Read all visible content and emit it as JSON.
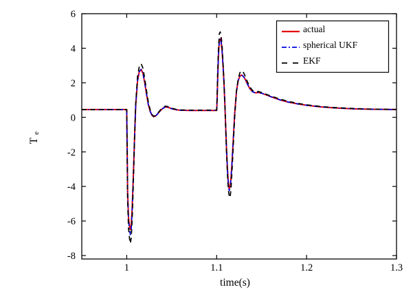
{
  "figure": {
    "xlabel": "time(s)",
    "ylabel_main": "T",
    "ylabel_sub": "e"
  },
  "chart_data": {
    "type": "line",
    "title": "",
    "xlabel": "time(s)",
    "ylabel": "T_e",
    "xlim": [
      0.95,
      1.3
    ],
    "ylim": [
      -8.2,
      6
    ],
    "x_ticks": [
      1,
      1.1,
      1.2,
      1.3
    ],
    "x_tick_labels": [
      "1",
      "1.1",
      "1.2",
      "1.3"
    ],
    "y_ticks": [
      -8,
      -6,
      -4,
      -2,
      0,
      2,
      4,
      6
    ],
    "y_tick_labels": [
      "-8",
      "-6",
      "-4",
      "-2",
      "0",
      "2",
      "4",
      "6"
    ],
    "grid": false,
    "legend_position": "top-right",
    "axis_color": "#000000",
    "background": "#ffffff",
    "x": [
      0.95,
      0.98,
      1.0,
      1.0005,
      1.001,
      1.002,
      1.003,
      1.004,
      1.005,
      1.006,
      1.007,
      1.008,
      1.009,
      1.01,
      1.012,
      1.014,
      1.016,
      1.018,
      1.02,
      1.022,
      1.024,
      1.026,
      1.028,
      1.03,
      1.032,
      1.034,
      1.037,
      1.04,
      1.043,
      1.046,
      1.05,
      1.055,
      1.06,
      1.07,
      1.08,
      1.09,
      1.1,
      1.1005,
      1.101,
      1.102,
      1.103,
      1.104,
      1.105,
      1.106,
      1.107,
      1.108,
      1.109,
      1.11,
      1.111,
      1.112,
      1.113,
      1.114,
      1.115,
      1.116,
      1.117,
      1.118,
      1.119,
      1.12,
      1.122,
      1.124,
      1.126,
      1.128,
      1.13,
      1.132,
      1.134,
      1.137,
      1.14,
      1.143,
      1.146,
      1.15,
      1.155,
      1.16,
      1.17,
      1.18,
      1.19,
      1.2,
      1.215,
      1.23,
      1.25,
      1.27,
      1.3
    ],
    "series": [
      {
        "name": "actual",
        "color": "#e60000",
        "line_style": "solid",
        "y": [
          0.45,
          0.45,
          0.45,
          -2.0,
          -4.3,
          -5.8,
          -6.3,
          -6.5,
          -6.2,
          -5.3,
          -3.9,
          -2.3,
          -0.7,
          0.7,
          2.1,
          2.65,
          2.78,
          2.55,
          2.0,
          1.35,
          0.75,
          0.35,
          0.12,
          0.04,
          0.08,
          0.18,
          0.36,
          0.52,
          0.6,
          0.58,
          0.5,
          0.44,
          0.41,
          0.4,
          0.4,
          0.4,
          0.4,
          0.95,
          2.0,
          3.6,
          4.45,
          4.55,
          4.35,
          3.9,
          3.1,
          2.1,
          0.9,
          -0.5,
          -1.9,
          -3.0,
          -3.85,
          -4.15,
          -4.0,
          -3.5,
          -2.7,
          -1.8,
          -0.8,
          0.2,
          1.5,
          2.15,
          2.4,
          2.45,
          2.35,
          2.18,
          1.95,
          1.65,
          1.48,
          1.42,
          1.44,
          1.4,
          1.3,
          1.2,
          1.02,
          0.88,
          0.78,
          0.7,
          0.61,
          0.55,
          0.5,
          0.47,
          0.45
        ]
      },
      {
        "name": "spherical UKF",
        "color": "#0000dd",
        "line_style": "dash-dot",
        "y": [
          0.45,
          0.45,
          0.45,
          -2.0,
          -4.3,
          -5.95,
          -6.5,
          -6.8,
          -6.45,
          -5.45,
          -3.9,
          -2.3,
          -0.7,
          0.7,
          2.1,
          2.65,
          2.78,
          2.55,
          2.0,
          1.35,
          0.75,
          0.35,
          0.12,
          0.04,
          0.08,
          0.18,
          0.36,
          0.52,
          0.6,
          0.58,
          0.5,
          0.44,
          0.41,
          0.4,
          0.4,
          0.4,
          0.4,
          0.95,
          2.0,
          3.6,
          4.45,
          4.55,
          4.35,
          3.9,
          3.1,
          2.1,
          0.9,
          -0.5,
          -1.9,
          -3.0,
          -3.85,
          -4.25,
          -4.1,
          -3.5,
          -2.7,
          -1.8,
          -0.8,
          0.2,
          1.5,
          2.15,
          2.4,
          2.45,
          2.35,
          2.18,
          1.95,
          1.65,
          1.48,
          1.42,
          1.44,
          1.4,
          1.3,
          1.2,
          1.02,
          0.88,
          0.78,
          0.7,
          0.61,
          0.55,
          0.5,
          0.47,
          0.45
        ]
      },
      {
        "name": "EKF",
        "color": "#000000",
        "line_style": "dashed",
        "y": [
          0.45,
          0.45,
          0.45,
          -2.3,
          -4.8,
          -6.4,
          -7.0,
          -7.3,
          -6.95,
          -5.95,
          -4.4,
          -2.6,
          -0.8,
          0.8,
          2.35,
          2.95,
          3.1,
          2.85,
          2.25,
          1.55,
          0.9,
          0.44,
          0.17,
          0.06,
          0.1,
          0.21,
          0.4,
          0.57,
          0.65,
          0.62,
          0.53,
          0.46,
          0.43,
          0.42,
          0.42,
          0.42,
          0.42,
          1.15,
          2.4,
          4.0,
          4.85,
          4.95,
          4.7,
          4.2,
          3.3,
          2.2,
          0.9,
          -0.6,
          -2.1,
          -3.3,
          -4.2,
          -4.55,
          -4.65,
          -4.1,
          -3.2,
          -2.2,
          -1.1,
          0.0,
          1.5,
          2.25,
          2.6,
          2.7,
          2.58,
          2.35,
          2.08,
          1.75,
          1.55,
          1.48,
          1.5,
          1.44,
          1.34,
          1.24,
          1.06,
          0.92,
          0.81,
          0.73,
          0.63,
          0.57,
          0.52,
          0.48,
          0.46
        ]
      }
    ]
  }
}
